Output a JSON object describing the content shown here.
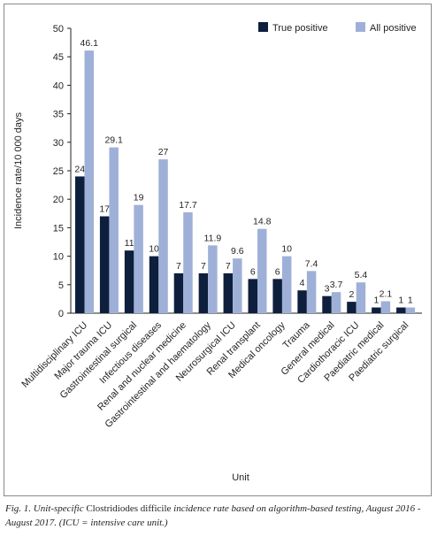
{
  "chart_data": {
    "type": "bar",
    "xlabel": "Unit",
    "ylabel": "Incidence rate/10 000 days",
    "ylim": [
      0,
      50
    ],
    "yticks": [
      0,
      5,
      10,
      15,
      20,
      25,
      30,
      35,
      40,
      45,
      50
    ],
    "grid": false,
    "legend_position": "top-right",
    "categories": [
      "Multidisciplinary ICU",
      "Major trauma ICU",
      "Gastrointestinal surgical",
      "Infectious diseases",
      "Renal and nuclear medicine",
      "Gastrointestinal and haematology",
      "Neurosurgical ICU",
      "Renal transplant",
      "Medical oncology",
      "Trauma",
      "General medical",
      "Cardiothoracic ICU",
      "Paediatric medical",
      "Paediatric surgical"
    ],
    "series": [
      {
        "name": "True positive",
        "color": "#0d1f3c",
        "values": [
          24,
          17,
          11,
          10,
          7,
          7,
          7,
          6,
          6,
          4,
          3,
          2,
          1,
          1
        ]
      },
      {
        "name": "All positive",
        "color": "#9fb0d8",
        "values": [
          46.1,
          29.1,
          19,
          27,
          17.7,
          11.9,
          9.6,
          14.8,
          10,
          7.4,
          3.7,
          5.4,
          2.1,
          1
        ]
      }
    ]
  },
  "caption": {
    "prefix": "Fig. 1. Unit-specific ",
    "organism": "Clostridiodes difficile",
    "suffix": " incidence rate based on algorithm-based testing, August 2016 - August 2017. (ICU = intensive care unit.)"
  }
}
